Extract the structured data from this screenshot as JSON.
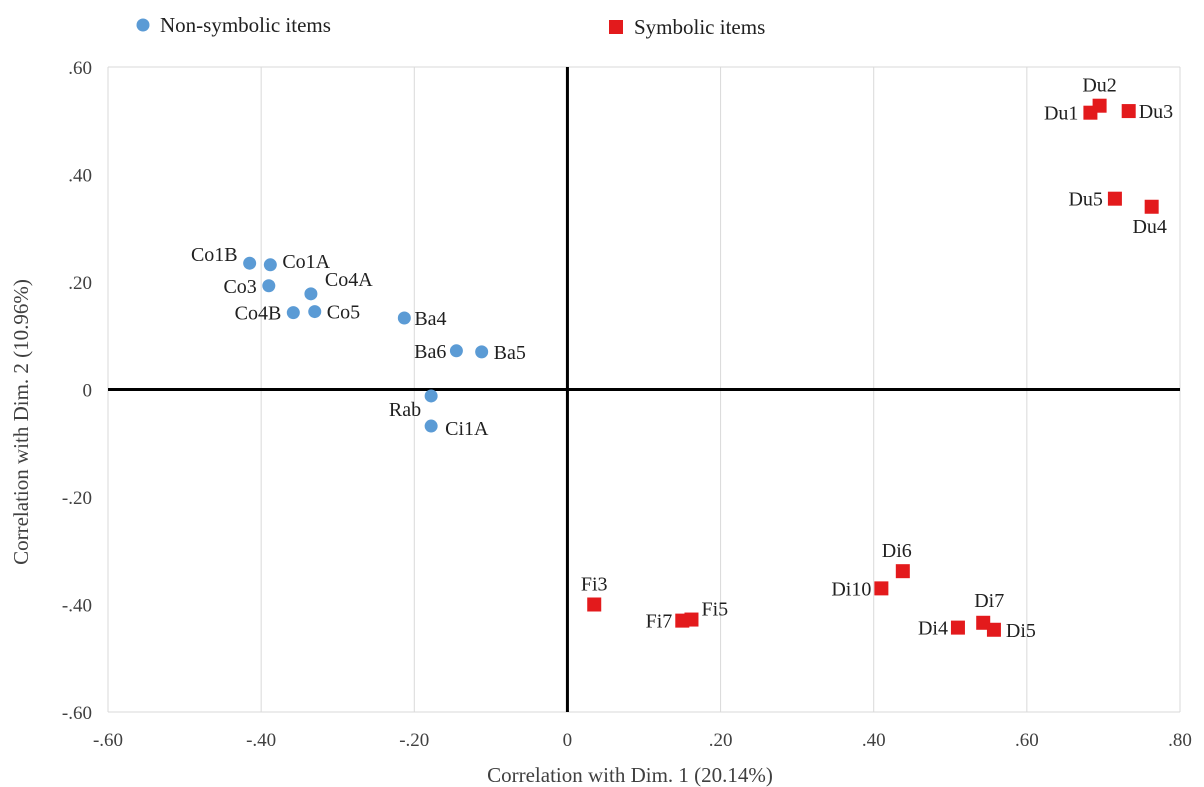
{
  "chart_data": {
    "type": "scatter",
    "xlabel": "Correlation with Dim. 1 (20.14%)",
    "ylabel": "Correlation with Dim. 2  (10.96%)",
    "xlim": [
      -0.6,
      0.8
    ],
    "ylim": [
      -0.6,
      0.6
    ],
    "x_ticks": [
      -0.6,
      -0.4,
      -0.2,
      0,
      0.2,
      0.4,
      0.6,
      0.8
    ],
    "x_tick_labels": [
      "-.60",
      "-.40",
      "-.20",
      "0",
      ".20",
      ".40",
      ".60",
      ".80"
    ],
    "y_ticks": [
      0.6,
      0.4,
      0.2,
      0,
      -0.2,
      -0.4,
      -0.6
    ],
    "y_tick_labels": [
      ".60",
      ".40",
      ".20",
      "0",
      "-.20",
      "-.40",
      "-.60"
    ],
    "grid": "vertical",
    "legend_position": "top",
    "series": [
      {
        "name": "Non-symbolic items",
        "marker": "circle",
        "color": "#5b9bd5",
        "points": [
          {
            "label": "Co1B",
            "x": -0.415,
            "y": 0.235
          },
          {
            "label": "Co1A",
            "x": -0.388,
            "y": 0.232
          },
          {
            "label": "Co3",
            "x": -0.39,
            "y": 0.193
          },
          {
            "label": "Co4A",
            "x": -0.335,
            "y": 0.178
          },
          {
            "label": "Co4B",
            "x": -0.358,
            "y": 0.143
          },
          {
            "label": "Co5",
            "x": -0.33,
            "y": 0.145
          },
          {
            "label": "Ba4",
            "x": -0.213,
            "y": 0.133
          },
          {
            "label": "Ba6",
            "x": -0.145,
            "y": 0.072
          },
          {
            "label": "Ba5",
            "x": -0.112,
            "y": 0.07
          },
          {
            "label": "Rab",
            "x": -0.178,
            "y": -0.012
          },
          {
            "label": "Ci1A",
            "x": -0.178,
            "y": -0.068
          }
        ]
      },
      {
        "name": "Symbolic items",
        "marker": "square",
        "color": "#e31a1c",
        "points": [
          {
            "label": "Du2",
            "x": 0.695,
            "y": 0.528
          },
          {
            "label": "Du1",
            "x": 0.683,
            "y": 0.515
          },
          {
            "label": "Du3",
            "x": 0.733,
            "y": 0.518
          },
          {
            "label": "Du5",
            "x": 0.715,
            "y": 0.355
          },
          {
            "label": "Du4",
            "x": 0.763,
            "y": 0.34
          },
          {
            "label": "Fi3",
            "x": 0.035,
            "y": -0.4
          },
          {
            "label": "Fi7",
            "x": 0.15,
            "y": -0.43
          },
          {
            "label": "Fi5",
            "x": 0.162,
            "y": -0.428
          },
          {
            "label": "Di6",
            "x": 0.438,
            "y": -0.338
          },
          {
            "label": "Di10",
            "x": 0.41,
            "y": -0.37
          },
          {
            "label": "Di7",
            "x": 0.543,
            "y": -0.434
          },
          {
            "label": "Di4",
            "x": 0.51,
            "y": -0.443
          },
          {
            "label": "Di5",
            "x": 0.557,
            "y": -0.447
          }
        ]
      }
    ]
  }
}
